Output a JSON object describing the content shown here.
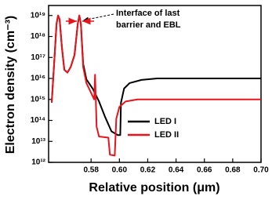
{
  "chart_data": {
    "type": "line",
    "xlabel": "Relative position (μm)",
    "ylabel": "Electron density (cm⁻³)",
    "annotation": [
      "Interface of last",
      "barrier and EBL"
    ],
    "xlim": [
      0.55,
      0.7
    ],
    "xticks": [
      0.58,
      {
        "value": 0.6,
        "label": "0.60"
      },
      0.62,
      0.64,
      0.66,
      0.68,
      {
        "value": 0.7,
        "label": "0.70"
      }
    ],
    "ylim": [
      1000000000000.0,
      3e+19
    ],
    "yscale": "log",
    "yticks": [
      {
        "value": 1000000000000.0,
        "label": "10¹²"
      },
      {
        "value": 10000000000000.0,
        "label": "10¹³"
      },
      {
        "value": 100000000000000.0,
        "label": "10¹⁴"
      },
      {
        "value": 1000000000000000.0,
        "label": "10¹⁵"
      },
      {
        "value": 1e+16,
        "label": "10¹⁶"
      },
      {
        "value": 1e+17,
        "label": "10¹⁷"
      },
      {
        "value": 1e+18,
        "label": "10¹⁸"
      },
      {
        "value": 1e+19,
        "label": "10¹⁹"
      }
    ],
    "legend": "lower-right",
    "series": [
      {
        "name": "LED I",
        "color": "#000000",
        "x": [
          0.5522,
          0.5539,
          0.5556,
          0.5567,
          0.5578,
          0.5594,
          0.5611,
          0.5633,
          0.5656,
          0.5683,
          0.5706,
          0.5717,
          0.5728,
          0.5744,
          0.5767,
          0.5811,
          0.5856,
          0.59,
          0.5944,
          0.5989,
          0.6006,
          0.6011,
          0.6033,
          0.6072,
          0.6156,
          0.6267,
          0.7
        ],
        "values": [
          700000000000000.0,
          5e+16,
          4e+18,
          1e+19,
          6.5e+18,
          3e+17,
          2.6e+16,
          1.9e+16,
          3.5e+16,
          1.3e+17,
          4e+18,
          1e+19,
          4e+18,
          5e+16,
          9000000000000000.0,
          3300000000000000.0,
          800000000000000.0,
          140000000000000.0,
          30000000000000.0,
          20000000000000.0,
          20000000000000.0,
          700000000000000.0,
          3300000000000000.0,
          6000000000000000.0,
          8500000000000000.0,
          1e+16,
          1e+16
        ]
      },
      {
        "name": "LED II",
        "color": "#e8141b",
        "x": [
          0.5522,
          0.5539,
          0.5556,
          0.5567,
          0.5578,
          0.5594,
          0.5611,
          0.5633,
          0.5656,
          0.5683,
          0.5706,
          0.5717,
          0.5728,
          0.5744,
          0.5767,
          0.5794,
          0.5822,
          0.5828,
          0.5839,
          0.5856,
          0.5922,
          0.5933,
          0.5967,
          0.5978,
          0.6,
          0.6044,
          0.6128,
          0.7
        ],
        "values": [
          700000000000000.0,
          5e+16,
          4e+18,
          1e+19,
          6.5e+18,
          3e+17,
          2.6e+16,
          1.9e+16,
          3.5e+16,
          1.3e+17,
          4e+18,
          1e+19,
          4e+18,
          3.5e+16,
          6000000000000000.0,
          2500000000000000.0,
          1000000000000000.0,
          1.5e+16,
          50000000000000.0,
          17000000000000.0,
          15000000000000.0,
          2300000000000.0,
          2100000000000.0,
          120000000000000.0,
          440000000000000.0,
          800000000000000.0,
          1000000000000000.0,
          1000000000000000.0
        ]
      }
    ]
  }
}
